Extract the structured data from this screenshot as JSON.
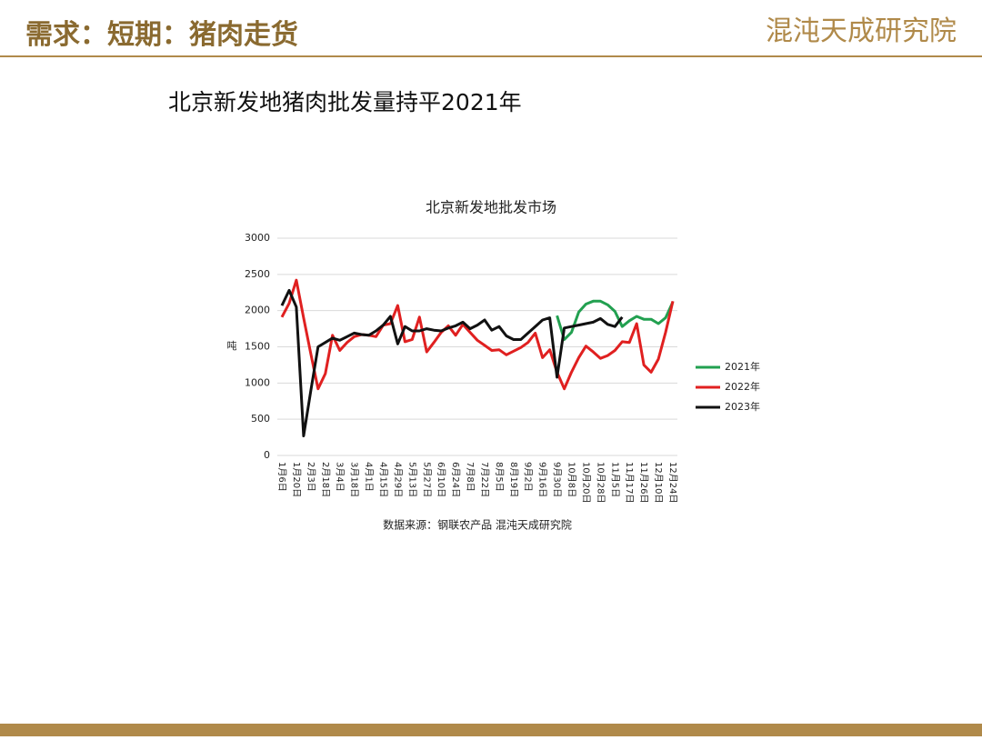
{
  "header": {
    "title": "需求：短期：猪肉走货",
    "logo": "混沌天成研究院"
  },
  "heading": "北京新发地猪肉批发量持平2021年",
  "source": "数据来源：钢联农产品  混沌天成研究院",
  "chart_data": {
    "type": "line",
    "title": "北京新发地批发市场",
    "y_label": "吨",
    "categories": [
      "1月6日",
      null,
      "1月20日",
      null,
      "2月3日",
      null,
      "2月18日",
      null,
      "3月4日",
      null,
      "3月18日",
      null,
      "4月1日",
      null,
      "4月15日",
      null,
      "4月29日",
      null,
      "5月13日",
      null,
      "5月27日",
      null,
      "6月10日",
      null,
      "6月24日",
      null,
      "7月8日",
      null,
      "7月22日",
      null,
      "8月5日",
      null,
      "8月19日",
      null,
      "9月2日",
      null,
      "9月16日",
      null,
      "9月30日",
      null,
      "10月8日",
      null,
      "10月20日",
      null,
      "10月28日",
      null,
      "11月5日",
      null,
      "11月17日",
      null,
      "11月26日",
      null,
      "12月10日",
      null,
      "12月24日"
    ],
    "ylim": [
      0,
      3000
    ],
    "yticks": [
      0,
      500,
      1000,
      1500,
      2000,
      2500,
      3000
    ],
    "grid": true,
    "legend": "right",
    "series": [
      {
        "name": "2021年",
        "color": "#22a050",
        "values": [
          null,
          null,
          null,
          null,
          null,
          null,
          null,
          null,
          null,
          null,
          null,
          null,
          null,
          null,
          null,
          null,
          null,
          null,
          null,
          null,
          null,
          null,
          null,
          null,
          null,
          null,
          null,
          null,
          null,
          null,
          null,
          null,
          null,
          null,
          null,
          null,
          null,
          null,
          1930,
          1600,
          1700,
          1980,
          2090,
          2130,
          2130,
          2080,
          1990,
          1780,
          1860,
          1920,
          1880,
          1880,
          1820,
          1900,
          2120
        ]
      },
      {
        "name": "2022年",
        "color": "#e02020",
        "values": [
          1910,
          2100,
          2420,
          1900,
          1400,
          920,
          1130,
          1660,
          1450,
          1560,
          1640,
          1670,
          1660,
          1640,
          1800,
          1820,
          2070,
          1570,
          1600,
          1910,
          1430,
          1560,
          1700,
          1790,
          1660,
          1810,
          1700,
          1590,
          1520,
          1450,
          1460,
          1390,
          1440,
          1490,
          1560,
          1690,
          1350,
          1460,
          1150,
          920,
          1150,
          1350,
          1510,
          1430,
          1340,
          1380,
          1450,
          1570,
          1560,
          1820,
          1250,
          1150,
          1330,
          1700,
          2130
        ]
      },
      {
        "name": "2023年",
        "color": "#111111",
        "values": [
          2070,
          2280,
          2050,
          270,
          900,
          1500,
          1560,
          1620,
          1590,
          1640,
          1690,
          1670,
          1660,
          1720,
          1800,
          1920,
          1540,
          1780,
          1720,
          1720,
          1750,
          1730,
          1720,
          1760,
          1790,
          1840,
          1750,
          1800,
          1870,
          1730,
          1780,
          1650,
          1600,
          1600,
          1690,
          1780,
          1870,
          1900,
          1080,
          1760,
          1780,
          1800,
          1820,
          1840,
          1890,
          1810,
          1780,
          1910,
          null,
          null,
          null,
          null,
          null,
          null,
          null
        ]
      }
    ]
  }
}
